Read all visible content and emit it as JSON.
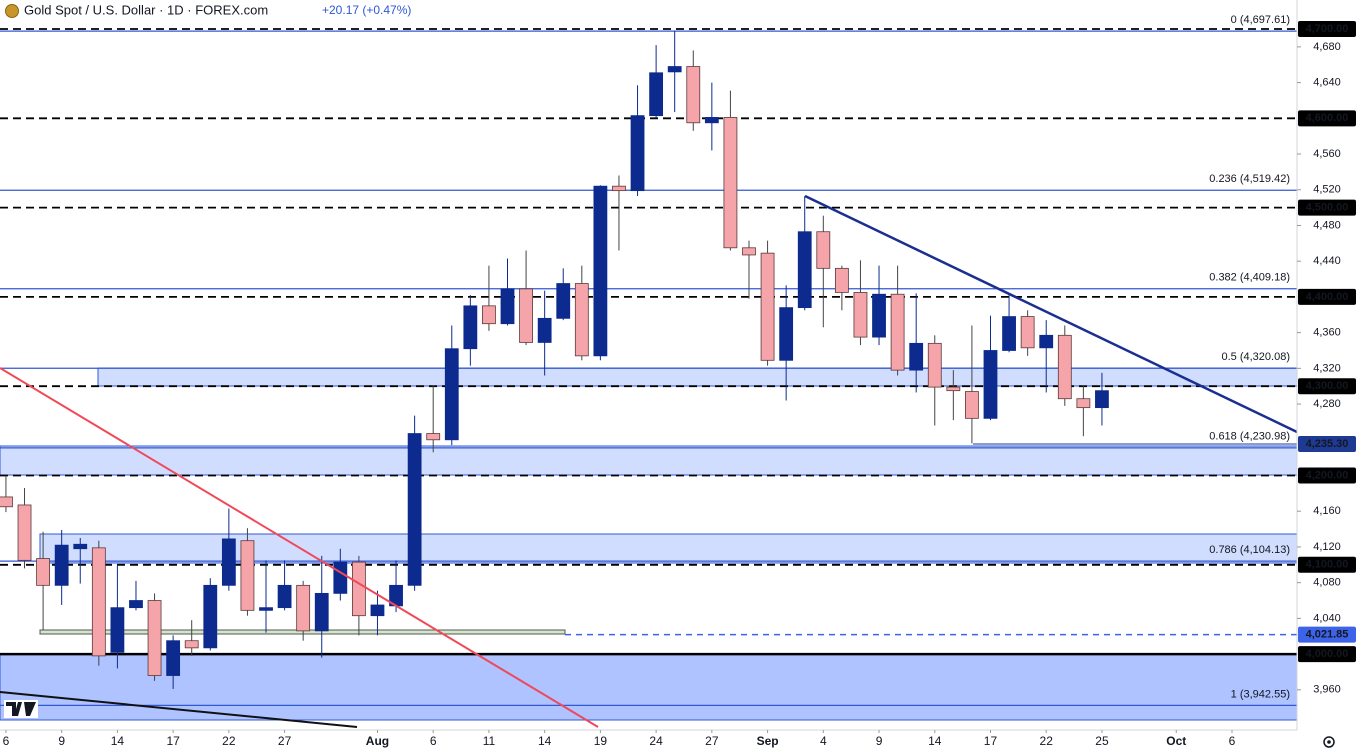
{
  "chart_data": {
    "type": "candlestick",
    "title": "Gold Spot / U.S. Dollar · 1D · FOREX.com",
    "change": "+20.17 (+0.47%)",
    "xlim": [
      -0.32,
      69.5
    ],
    "xticks": [
      {
        "value": 0,
        "label": "6"
      },
      {
        "value": 3,
        "label": "9"
      },
      {
        "value": 6,
        "label": "14"
      },
      {
        "value": 9,
        "label": "17"
      },
      {
        "value": 12,
        "label": "22"
      },
      {
        "value": 15,
        "label": "27"
      },
      {
        "value": 20,
        "label": "Aug"
      },
      {
        "value": 23,
        "label": "6"
      },
      {
        "value": 26,
        "label": "11"
      },
      {
        "value": 29,
        "label": "14"
      },
      {
        "value": 32,
        "label": "19"
      },
      {
        "value": 35,
        "label": "24"
      },
      {
        "value": 38,
        "label": "27"
      },
      {
        "value": 41,
        "label": "Sep"
      },
      {
        "value": 44,
        "label": "4"
      },
      {
        "value": 47,
        "label": "9"
      },
      {
        "value": 50,
        "label": "14"
      },
      {
        "value": 53,
        "label": "17"
      },
      {
        "value": 56,
        "label": "22"
      },
      {
        "value": 59,
        "label": "25"
      },
      {
        "value": 63,
        "label": "Oct"
      },
      {
        "value": 66,
        "label": "6"
      }
    ],
    "ylim": [
      3915,
      4732.5
    ],
    "yticks": [
      {
        "value": 3960,
        "label": "3,960"
      },
      {
        "value": 4040,
        "label": "4,040"
      },
      {
        "value": 4080,
        "label": "4,080"
      },
      {
        "value": 4120,
        "label": "4,120"
      },
      {
        "value": 4160,
        "label": "4,160"
      },
      {
        "value": 4280,
        "label": "4,280"
      },
      {
        "value": 4320,
        "label": "4,320"
      },
      {
        "value": 4360,
        "label": "4,360"
      },
      {
        "value": 4440,
        "label": "4,440"
      },
      {
        "value": 4480,
        "label": "4,480"
      },
      {
        "value": 4520,
        "label": "4,520"
      },
      {
        "value": 4560,
        "label": "4,560"
      },
      {
        "value": 4640,
        "label": "4,640"
      },
      {
        "value": 4680,
        "label": "4,680"
      }
    ],
    "open": [
      4176,
      4167,
      4107,
      4077,
      4118,
      4119,
      4002,
      4052,
      4060,
      3976,
      4015,
      4007,
      4077,
      4127,
      4049,
      4052,
      4077,
      4026,
      4068,
      4103,
      4043,
      4054,
      4077,
      4247,
      4240,
      4342,
      4390,
      4370,
      4409,
      4349,
      4376,
      4415,
      4334,
      4524,
      4519,
      4603,
      4652,
      4658,
      4595,
      4601,
      4455,
      4449,
      4329,
      4388,
      4473,
      4432,
      4405,
      4355,
      4403,
      4318,
      4348,
      4299,
      4294,
      4264,
      4340,
      4378,
      4343,
      4357,
      4286,
      4276
    ],
    "high": [
      4200,
      4186,
      4137,
      4139,
      4130,
      4127,
      4099,
      4082,
      4068,
      4021,
      4038,
      4085,
      4163,
      4141,
      4105,
      4105,
      4082,
      4110,
      4118,
      4110,
      4071,
      4105,
      4267,
      4301,
      4368,
      4402,
      4435,
      4443,
      4452,
      4407,
      4432,
      4435,
      4525,
      4536,
      4637,
      4682,
      4698,
      4676,
      4640,
      4631,
      4463,
      4463,
      4413,
      4513,
      4491,
      4435,
      4441,
      4435,
      4435,
      4404,
      4357,
      4318,
      4368,
      4379,
      4402,
      4385,
      4374,
      4368,
      4301,
      4315
    ],
    "low": [
      4159,
      4096,
      4027,
      4055,
      4079,
      3987,
      3984,
      4049,
      3970,
      3961,
      3998,
      4004,
      4071,
      4043,
      4024,
      4049,
      4015,
      3996,
      4060,
      4021,
      4021,
      4047,
      4071,
      4226,
      4234,
      4323,
      4362,
      4368,
      4346,
      4312,
      4374,
      4329,
      4329,
      4452,
      4513,
      4600,
      4607,
      4586,
      4564,
      4452,
      4398,
      4323,
      4284,
      4385,
      4366,
      4385,
      4346,
      4346,
      4312,
      4293,
      4256,
      4262,
      4236,
      4262,
      4338,
      4334,
      4293,
      4278,
      4244,
      4256
    ],
    "close": [
      4165,
      4105,
      4077,
      4122,
      4123,
      3998,
      4052,
      4060,
      3976,
      4015,
      4007,
      4077,
      4129,
      4049,
      4052,
      4077,
      4026,
      4068,
      4103,
      4043,
      4055,
      4077,
      4247,
      4240,
      4342,
      4390,
      4370,
      4409,
      4349,
      4376,
      4415,
      4334,
      4524,
      4519,
      4603,
      4651,
      4658,
      4595,
      4601,
      4455,
      4447,
      4329,
      4388,
      4473,
      4432,
      4405,
      4355,
      4403,
      4318,
      4348,
      4299,
      4295,
      4264,
      4340,
      4378,
      4343,
      4357,
      4286,
      4276,
      4295
    ],
    "up_color": "#0d2b8e",
    "down_color": "#f5a5aa",
    "levels": [
      {
        "value": 4700,
        "label": "4,700.00",
        "style": "dashed"
      },
      {
        "value": 4600,
        "label": "4,600.00",
        "style": "dashed"
      },
      {
        "value": 4500,
        "label": "4,500.00",
        "style": "dashed"
      },
      {
        "value": 4400,
        "label": "4,400.00",
        "style": "dashed"
      },
      {
        "value": 4300,
        "label": "4,300.00",
        "style": "dashed"
      },
      {
        "value": 4200,
        "label": "4,200.00",
        "style": "dashed"
      },
      {
        "value": 4100,
        "label": "4,100.00",
        "style": "dashed"
      },
      {
        "value": 4000,
        "label": "4,000.00",
        "style": "solid"
      }
    ],
    "level_color": "#000000",
    "price_line": {
      "value": 4235.3,
      "label": "4,235.30",
      "color": "#1f3a93"
    },
    "alert_line": {
      "value": 4021.85,
      "label": "4,021.85",
      "color": "#3d64e8"
    },
    "fib_color": "#3358d4",
    "fib": [
      {
        "value": 4697.61,
        "label": "0 (4,697.61)"
      },
      {
        "value": 4519.42,
        "label": "0.236 (4,519.42)"
      },
      {
        "value": 4409.18,
        "label": "0.382 (4,409.18)"
      },
      {
        "value": 4320.08,
        "label": "0.5 (4,320.08)"
      },
      {
        "value": 4230.98,
        "label": "0.618 (4,230.98)"
      },
      {
        "value": 4104.13,
        "label": "0.786 (4,104.13)"
      },
      {
        "value": 3942.55,
        "label": "1 (3,942.55)"
      }
    ]
  }
}
